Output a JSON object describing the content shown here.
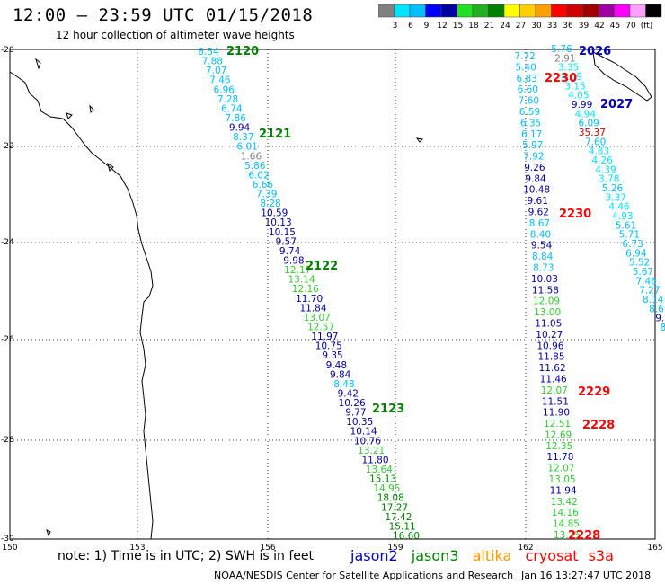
{
  "title": "12:00 — 23:59 UTC 01/15/2018",
  "subtitle": "12 hour collection of altimeter wave heights",
  "scale": {
    "colors": [
      "#808080",
      "#00e5ff",
      "#00bfff",
      "#0000ff",
      "#0000a0",
      "#22e022",
      "#22b022",
      "#008000",
      "#ffff00",
      "#ffd000",
      "#ffa000",
      "#ff0000",
      "#d00000",
      "#a00000",
      "#a000a0",
      "#ff00ff",
      "#ffa0ff",
      "#000000"
    ],
    "labels": [
      "3",
      "6",
      "9",
      "12",
      "15",
      "18",
      "21",
      "24",
      "27",
      "30",
      "33",
      "36",
      "39",
      "42",
      "45",
      "70",
      "(ft)"
    ]
  },
  "lat_labels": [
    "-20",
    "-22",
    "-24",
    "-26",
    "-28",
    "-30"
  ],
  "lon_labels": [
    "150",
    "153",
    "156",
    "159",
    "162",
    "165"
  ],
  "satellite_colors": {
    "jason2": "#0000c0",
    "jason3": "#008000",
    "altika": "#ff9900",
    "cryosat": "#ff0000",
    "s3a": "#ff0000"
  },
  "track_labels": [
    {
      "text": "2120",
      "sat": "jason3"
    },
    {
      "text": "2121",
      "sat": "jason3"
    },
    {
      "text": "2122",
      "sat": "jason3"
    },
    {
      "text": "2123",
      "sat": "jason3"
    },
    {
      "text": "2026",
      "sat": "jason2"
    },
    {
      "text": "2027",
      "sat": "jason2"
    },
    {
      "text": "2230",
      "sat": "s3a"
    },
    {
      "text": "2230",
      "sat": "s3a"
    },
    {
      "text": "2229",
      "sat": "s3a"
    },
    {
      "text": "2228",
      "sat": "s3a"
    },
    {
      "text": "2228",
      "sat": "s3a"
    }
  ],
  "track1": [
    [
      "6.54",
      "#00bfff"
    ],
    [
      "7.88",
      "#00bfff"
    ],
    [
      "7.07",
      "#00bfff"
    ],
    [
      "7.46",
      "#00bfff"
    ],
    [
      "6.96",
      "#00bfff"
    ],
    [
      "7.28",
      "#00bfff"
    ],
    [
      "6.74",
      "#00bfff"
    ],
    [
      "7.86",
      "#00bfff"
    ],
    [
      "9.94",
      "#0000a0"
    ],
    [
      "8.37",
      "#00bfff"
    ],
    [
      "6.01",
      "#00bfff"
    ],
    [
      "1.66",
      "#808080"
    ],
    [
      "5.86",
      "#00bfff"
    ],
    [
      "6.02",
      "#00bfff"
    ],
    [
      "6.66",
      "#00bfff"
    ],
    [
      "7.39",
      "#00bfff"
    ],
    [
      "8.28",
      "#00bfff"
    ],
    [
      "10.59",
      "#0000a0"
    ],
    [
      "10.13",
      "#0000a0"
    ],
    [
      "10.15",
      "#0000a0"
    ],
    [
      "9.57",
      "#0000a0"
    ],
    [
      "9.74",
      "#0000a0"
    ],
    [
      "9.98",
      "#0000a0"
    ],
    [
      "12.17",
      "#33cc33"
    ],
    [
      "13.14",
      "#33cc33"
    ],
    [
      "12.16",
      "#33cc33"
    ],
    [
      "11.70",
      "#0000a0"
    ],
    [
      "11.84",
      "#0000a0"
    ],
    [
      "13.07",
      "#33cc33"
    ],
    [
      "12.57",
      "#33cc33"
    ],
    [
      "11.97",
      "#0000a0"
    ],
    [
      "10.75",
      "#0000a0"
    ],
    [
      "9.35",
      "#0000a0"
    ],
    [
      "9.48",
      "#0000a0"
    ],
    [
      "9.84",
      "#0000a0"
    ],
    [
      "8.48",
      "#00bfff"
    ],
    [
      "9.42",
      "#0000a0"
    ],
    [
      "10.26",
      "#0000a0"
    ],
    [
      "9.77",
      "#0000a0"
    ],
    [
      "10.35",
      "#0000a0"
    ],
    [
      "10.14",
      "#0000a0"
    ],
    [
      "10.76",
      "#0000a0"
    ],
    [
      "13.21",
      "#33cc33"
    ],
    [
      "11.80",
      "#0000a0"
    ],
    [
      "13.64",
      "#33cc33"
    ],
    [
      "15.13",
      "#008000"
    ],
    [
      "14.95",
      "#33cc33"
    ],
    [
      "18.08",
      "#008000"
    ],
    [
      "17.27",
      "#008000"
    ],
    [
      "17.42",
      "#008000"
    ],
    [
      "15.11",
      "#008000"
    ],
    [
      "16.60",
      "#008000"
    ]
  ],
  "track2": [
    [
      "7.72",
      "#00bfff"
    ],
    [
      "5.40",
      "#00bfff"
    ],
    [
      "6.83",
      "#00bfff"
    ],
    [
      "6.60",
      "#00bfff"
    ],
    [
      "7.60",
      "#00bfff"
    ],
    [
      "6.59",
      "#00bfff"
    ],
    [
      "6.35",
      "#00bfff"
    ],
    [
      "6.17",
      "#00bfff"
    ],
    [
      "5.97",
      "#00bfff"
    ],
    [
      "7.92",
      "#00bfff"
    ],
    [
      "9.26",
      "#0000a0"
    ],
    [
      "9.84",
      "#0000a0"
    ],
    [
      "10.48",
      "#0000a0"
    ],
    [
      "9.61",
      "#0000a0"
    ],
    [
      "9.62",
      "#0000a0"
    ],
    [
      "8.67",
      "#00bfff"
    ],
    [
      "8.40",
      "#00bfff"
    ],
    [
      "9.54",
      "#0000a0"
    ],
    [
      "8.84",
      "#00bfff"
    ],
    [
      "8.73",
      "#00bfff"
    ],
    [
      "10.03",
      "#0000a0"
    ],
    [
      "11.58",
      "#0000a0"
    ],
    [
      "12.09",
      "#33cc33"
    ],
    [
      "13.00",
      "#33cc33"
    ],
    [
      "11.05",
      "#0000a0"
    ],
    [
      "10.27",
      "#0000a0"
    ],
    [
      "10.96",
      "#0000a0"
    ],
    [
      "11.85",
      "#0000a0"
    ],
    [
      "11.62",
      "#0000a0"
    ],
    [
      "11.46",
      "#0000a0"
    ],
    [
      "12.07",
      "#33cc33"
    ],
    [
      "11.51",
      "#0000a0"
    ],
    [
      "11.90",
      "#0000a0"
    ],
    [
      "12.51",
      "#33cc33"
    ],
    [
      "12.69",
      "#33cc33"
    ],
    [
      "12.35",
      "#33cc33"
    ],
    [
      "11.78",
      "#0000a0"
    ],
    [
      "12.07",
      "#33cc33"
    ],
    [
      "13.05",
      "#33cc33"
    ],
    [
      "11.94",
      "#0000a0"
    ],
    [
      "13.42",
      "#33cc33"
    ],
    [
      "14.16",
      "#33cc33"
    ],
    [
      "14.85",
      "#33cc33"
    ],
    [
      "13.75",
      "#33cc33"
    ]
  ],
  "track3": [
    [
      "5.76",
      "#00bfff"
    ],
    [
      "2.91",
      "#808080"
    ],
    [
      "3.35",
      "#00e5ff"
    ],
    [
      "4.09",
      "#00e5ff"
    ],
    [
      "3.15",
      "#00e5ff"
    ],
    [
      "4.05",
      "#00e5ff"
    ],
    [
      "9.99",
      "#0000a0"
    ],
    [
      "4.94",
      "#00e5ff"
    ],
    [
      "6.09",
      "#00bfff"
    ],
    [
      "35.37",
      "#d00000"
    ],
    [
      "7.60",
      "#00bfff"
    ],
    [
      "4.83",
      "#00e5ff"
    ],
    [
      "4.26",
      "#00e5ff"
    ],
    [
      "4.39",
      "#00e5ff"
    ],
    [
      "3.78",
      "#00e5ff"
    ],
    [
      "5.26",
      "#00bfff"
    ],
    [
      "3.37",
      "#00e5ff"
    ],
    [
      "4.46",
      "#00e5ff"
    ],
    [
      "4.93",
      "#00e5ff"
    ],
    [
      "5.61",
      "#00bfff"
    ],
    [
      "5.71",
      "#00bfff"
    ],
    [
      "6.73",
      "#00bfff"
    ],
    [
      "6.94",
      "#00bfff"
    ],
    [
      "5.52",
      "#00bfff"
    ],
    [
      "5.67",
      "#00bfff"
    ],
    [
      "7.46",
      "#00bfff"
    ],
    [
      "7.27",
      "#00bfff"
    ],
    [
      "8.14",
      "#00bfff"
    ],
    [
      "8.6",
      "#00bfff"
    ],
    [
      "9.",
      "#0000a0"
    ],
    [
      "8",
      "#00bfff"
    ]
  ],
  "note": "note: 1) Time is in UTC; 2) SWH is in feet",
  "legend": [
    "jason2",
    "jason3",
    "altika",
    "cryosat",
    "s3a"
  ],
  "credit": "NOAA/NESDIS Center for Satellite Applications and Research",
  "timestamp": "Jan 16 13:27:47 UTC 2018"
}
